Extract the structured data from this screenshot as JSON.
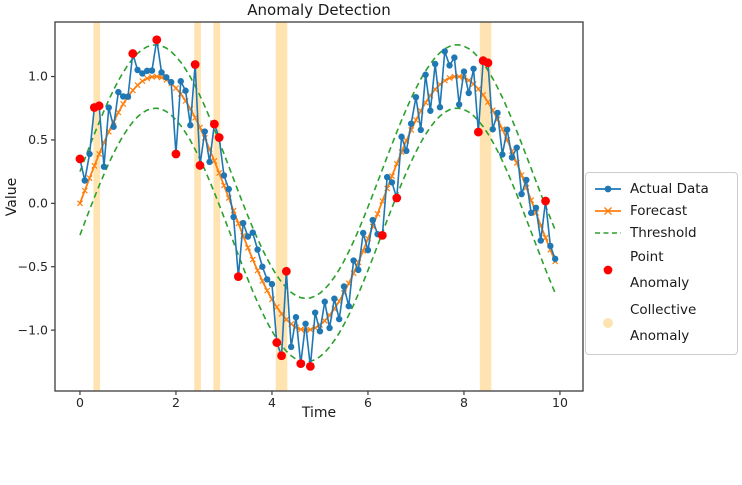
{
  "figure": {
    "title": "Anomaly Detection",
    "xlabel": "Time",
    "ylabel": "Value"
  },
  "colors": {
    "actual": "#1f77b4",
    "forecast": "#ff7f0e",
    "threshold": "#2ca02c",
    "point_anomaly": "#ff0000",
    "collective_anomaly": "#ffe4b2",
    "axis": "#3c3c3c",
    "text": "#1a1a1a",
    "legend_border": "#cccccc"
  },
  "legend": {
    "items": [
      {
        "label": "Actual Data",
        "marker": "line-dot",
        "color_key": "actual"
      },
      {
        "label": "Forecast",
        "marker": "line-x",
        "color_key": "forecast"
      },
      {
        "label": "Threshold",
        "marker": "dashed",
        "color_key": "threshold"
      },
      {
        "label": "Point\nAnomaly",
        "marker": "dot",
        "color_key": "point_anomaly"
      },
      {
        "label": "Collective\nAnomaly",
        "marker": "patch",
        "color_key": "collective_anomaly"
      }
    ]
  },
  "chart_data": {
    "type": "line",
    "title": "Anomaly Detection",
    "xlabel": "Time",
    "ylabel": "Value",
    "xlim": [
      -0.52,
      10.48
    ],
    "ylim": [
      -1.48,
      1.43
    ],
    "x_ticks": [
      0,
      2,
      4,
      6,
      8,
      10
    ],
    "y_ticks": [
      -1.0,
      -0.5,
      0.0,
      0.5,
      1.0
    ],
    "grid": false,
    "legend_position": "right-outside",
    "threshold_offset": 0.25,
    "x": [
      0,
      0.1,
      0.2,
      0.3,
      0.4,
      0.5,
      0.6,
      0.7,
      0.8,
      0.9,
      1,
      1.1,
      1.2,
      1.3,
      1.4,
      1.5,
      1.6,
      1.7,
      1.8,
      1.9,
      2,
      2.1,
      2.2,
      2.3,
      2.4,
      2.5,
      2.6,
      2.7,
      2.8,
      2.9,
      3,
      3.1,
      3.2,
      3.3,
      3.4,
      3.5,
      3.6,
      3.7,
      3.8,
      3.9,
      4,
      4.1,
      4.2,
      4.3,
      4.4,
      4.5,
      4.6,
      4.7,
      4.8,
      4.9,
      5,
      5.1,
      5.2,
      5.3,
      5.4,
      5.5,
      5.6,
      5.7,
      5.8,
      5.9,
      6,
      6.1,
      6.2,
      6.3,
      6.4,
      6.5,
      6.6,
      6.7,
      6.8,
      6.9,
      7,
      7.1,
      7.2,
      7.3,
      7.4,
      7.5,
      7.6,
      7.7,
      7.8,
      7.9,
      8,
      8.1,
      8.2,
      8.3,
      8.4,
      8.5,
      8.6,
      8.7,
      8.8,
      8.9,
      9,
      9.1,
      9.2,
      9.3,
      9.4,
      9.5,
      9.6,
      9.7,
      9.8,
      9.9
    ],
    "series": [
      {
        "name": "Actual Data",
        "values": [
          0.35,
          0.18,
          0.389,
          0.756,
          0.769,
          0.289,
          0.755,
          0.604,
          0.877,
          0.843,
          0.841,
          1.181,
          1.052,
          1.024,
          1.045,
          1.047,
          1.29,
          1.032,
          0.994,
          0.956,
          0.389,
          0.963,
          0.888,
          0.616,
          1.095,
          0.299,
          0.566,
          0.327,
          0.625,
          0.519,
          0.22,
          0.112,
          -0.108,
          -0.578,
          -0.156,
          -0.262,
          -0.231,
          -0.365,
          -0.5,
          -0.6,
          -0.637,
          -1.098,
          -1.202,
          -0.536,
          -1.132,
          -0.898,
          -1.264,
          -0.95,
          -1.286,
          -0.862,
          -1.009,
          -0.776,
          -0.983,
          -0.752,
          -0.913,
          -0.656,
          -0.811,
          -0.451,
          -0.525,
          -0.234,
          -0.369,
          -0.132,
          -0.243,
          -0.253,
          0.207,
          0.165,
          0.042,
          0.525,
          0.414,
          0.628,
          0.837,
          0.579,
          1.014,
          0.73,
          1.099,
          0.758,
          1.198,
          1.088,
          1.149,
          0.779,
          1.039,
          0.87,
          1.061,
          0.562,
          1.125,
          1.108,
          0.584,
          0.713,
          0.385,
          0.581,
          0.362,
          0.439,
          0.073,
          0.184,
          -0.075,
          -0.035,
          -0.294,
          0.018,
          -0.336,
          -0.438
        ]
      },
      {
        "name": "Forecast",
        "values": [
          0,
          0.1,
          0.199,
          0.296,
          0.389,
          0.479,
          0.565,
          0.644,
          0.717,
          0.783,
          0.841,
          0.891,
          0.932,
          0.964,
          0.985,
          0.997,
          1,
          0.992,
          0.974,
          0.946,
          0.909,
          0.863,
          0.808,
          0.746,
          0.675,
          0.599,
          0.516,
          0.427,
          0.335,
          0.239,
          0.141,
          0.042,
          -0.058,
          -0.158,
          -0.256,
          -0.351,
          -0.443,
          -0.53,
          -0.612,
          -0.688,
          -0.757,
          -0.818,
          -0.872,
          -0.916,
          -0.952,
          -0.978,
          -0.994,
          -1,
          -0.996,
          -0.982,
          -0.959,
          -0.926,
          -0.883,
          -0.832,
          -0.773,
          -0.706,
          -0.631,
          -0.551,
          -0.465,
          -0.374,
          -0.279,
          -0.182,
          -0.083,
          0.017,
          0.117,
          0.215,
          0.312,
          0.405,
          0.494,
          0.578,
          0.657,
          0.729,
          0.794,
          0.85,
          0.899,
          0.938,
          0.968,
          0.988,
          0.999,
          0.999,
          0.989,
          0.97,
          0.941,
          0.902,
          0.855,
          0.798,
          0.734,
          0.663,
          0.585,
          0.501,
          0.412,
          0.319,
          0.223,
          0.124,
          0.025,
          -0.075,
          -0.174,
          -0.272,
          -0.366,
          -0.458
        ]
      }
    ],
    "anomaly_indices": [
      0,
      3,
      4,
      11,
      16,
      20,
      24,
      25,
      28,
      29,
      33,
      41,
      42,
      43,
      46,
      48,
      63,
      66,
      83,
      84,
      85,
      97
    ],
    "collective_regions": [
      [
        0.28,
        0.42
      ],
      [
        2.38,
        2.52
      ],
      [
        2.78,
        2.92
      ],
      [
        4.08,
        4.32
      ],
      [
        8.33,
        8.57
      ]
    ]
  }
}
